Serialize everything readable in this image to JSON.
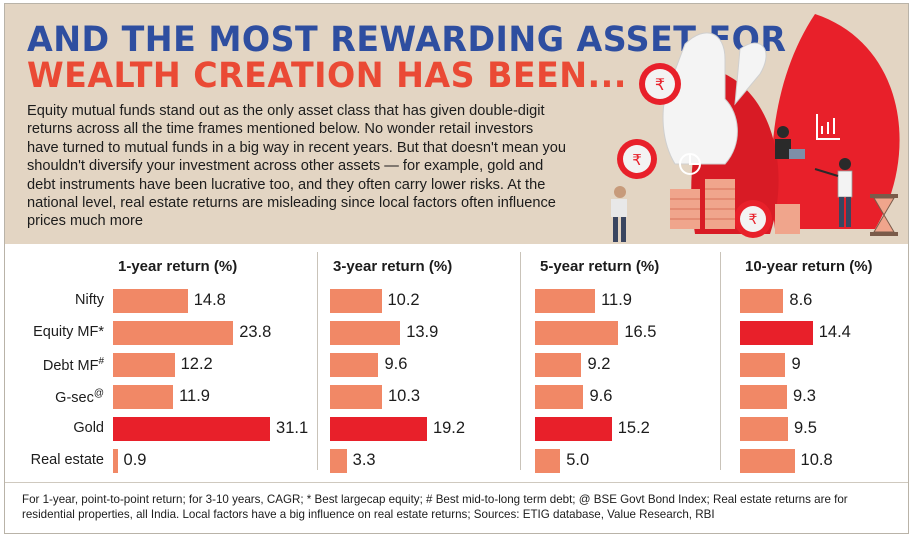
{
  "header": {
    "title_line1": "AND THE MOST REWARDING ASSET FOR",
    "title_line2": "WEALTH CREATION HAS BEEN...",
    "intro": "Equity mutual funds stand out as the only asset class that has given double-digit returns across all the time frames mentioned below. No wonder retail investors have turned to mutual funds in a big way in recent years. But that doesn't mean you shouldn't diversify your investment across other assets — for example, gold and debt instruments have been lucrative too, and they often carry lower risks. At the national level, real estate returns are misleading since local factors often influence prices much more"
  },
  "colors": {
    "title_blue": "#2e4ea0",
    "title_orange": "#ea4a35",
    "header_bg": "#e3d5c3",
    "bar_normal": "#f18866",
    "bar_highlight": "#e8202a"
  },
  "illustration_icons": [
    "rupee-coin-icon",
    "hand-icon",
    "laptop-person-icon",
    "presenter-icon",
    "pie-chart-icon",
    "bar-chart-icon",
    "hourglass-icon",
    "coin-stack-icon"
  ],
  "chart_data": {
    "type": "bar",
    "orientation": "horizontal",
    "categories": [
      "Nifty",
      "Equity MF*",
      "Debt MF#",
      "G-sec@",
      "Gold",
      "Real estate"
    ],
    "category_display": [
      {
        "text": "Nifty",
        "sup": ""
      },
      {
        "text": "Equity MF*",
        "sup": ""
      },
      {
        "text": "Debt MF",
        "sup": "#"
      },
      {
        "text": "G-sec",
        "sup": "@"
      },
      {
        "text": "Gold",
        "sup": ""
      },
      {
        "text": "Real estate",
        "sup": ""
      }
    ],
    "panels": [
      {
        "title": "1-year return (%)",
        "values": [
          14.8,
          23.8,
          12.2,
          11.9,
          31.1,
          0.9
        ],
        "labels": [
          "14.8",
          "23.8",
          "12.2",
          "11.9",
          "31.1",
          "0.9"
        ],
        "highlight_index": 4
      },
      {
        "title": "3-year return (%)",
        "values": [
          10.2,
          13.9,
          9.6,
          10.3,
          19.2,
          3.3
        ],
        "labels": [
          "10.2",
          "13.9",
          "9.6",
          "10.3",
          "19.2",
          "3.3"
        ],
        "highlight_index": 4
      },
      {
        "title": "5-year return (%)",
        "values": [
          11.9,
          16.5,
          9.2,
          9.6,
          15.2,
          5.0
        ],
        "labels": [
          "11.9",
          "16.5",
          "9.2",
          "9.6",
          "15.2",
          "5.0"
        ],
        "highlight_index": 4
      },
      {
        "title": "10-year return (%)",
        "values": [
          8.6,
          14.4,
          9,
          9.3,
          9.5,
          10.8
        ],
        "labels": [
          "8.6",
          "14.4",
          "9",
          "9.3",
          "9.5",
          "10.8"
        ],
        "highlight_index": 1
      }
    ]
  },
  "footnote": "For 1-year, point-to-point return; for 3-10 years, CAGR; * Best largecap equity; # Best mid-to-long term debt; @ BSE Govt Bond Index; Real estate returns are for residential properties, all India. Local factors have a big influence on real estate returns; Sources: ETIG database, Value Research, RBI"
}
